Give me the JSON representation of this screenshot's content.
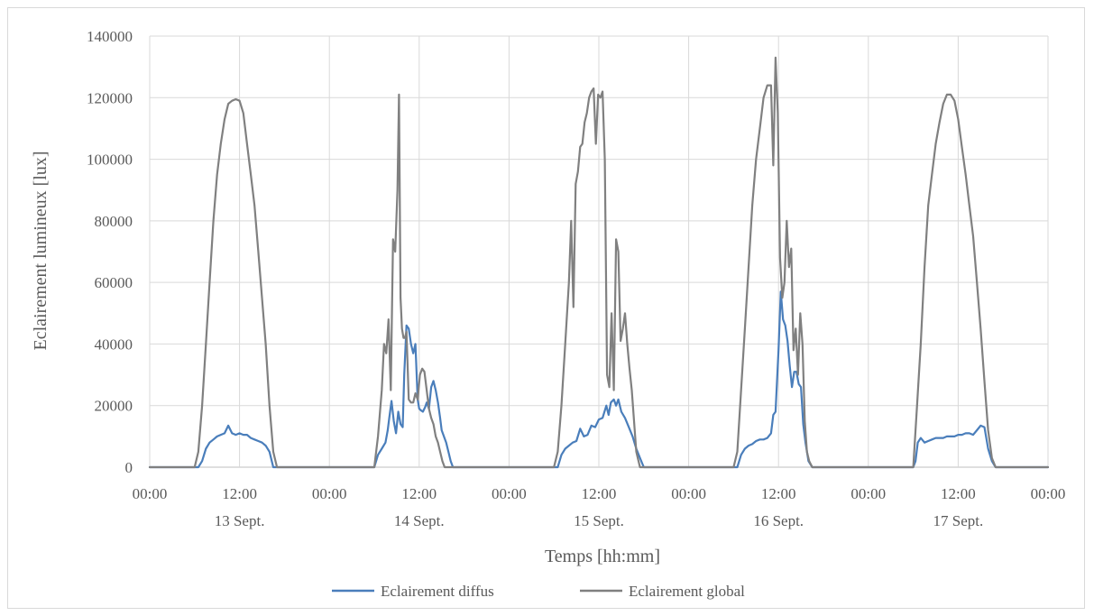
{
  "chart_data": {
    "type": "line",
    "title": "",
    "xlabel": "Temps [hh:mm]",
    "ylabel": "Eclairement lumineux [lux]",
    "ylim": [
      0,
      140000
    ],
    "yticks": [
      "0",
      "20000",
      "40000",
      "60000",
      "80000",
      "100000",
      "120000",
      "140000"
    ],
    "xlim_hours": [
      0,
      120
    ],
    "xticks": [
      "00:00",
      "12:00",
      "00:00",
      "12:00",
      "00:00",
      "12:00",
      "00:00",
      "12:00",
      "00:00",
      "12:00",
      "00:00"
    ],
    "day_labels": [
      "13 Sept.",
      "14 Sept.",
      "15 Sept.",
      "16 Sept.",
      "17 Sept."
    ],
    "grid": true,
    "legend_position": "bottom",
    "series": [
      {
        "name": "Eclairement diffus",
        "color": "#4a7ebb",
        "x": [
          0,
          6.5,
          7,
          7.5,
          8,
          8.5,
          9,
          9.5,
          10,
          10.5,
          11,
          11.5,
          12,
          12.5,
          13,
          13.5,
          14,
          14.5,
          15,
          15.5,
          16,
          16.5,
          17,
          17.5,
          24,
          30,
          30.5,
          31,
          31.5,
          31.8,
          32,
          32.3,
          32.6,
          32.9,
          33.2,
          33.5,
          33.8,
          34,
          34.3,
          34.6,
          34.9,
          35.2,
          35.5,
          35.8,
          36,
          36.2,
          36.5,
          36.8,
          37,
          37.3,
          37.6,
          37.9,
          38.2,
          38.5,
          38.8,
          39,
          39.3,
          39.6,
          39.9,
          40.2,
          40.5,
          40.8,
          41,
          41.3,
          41.6,
          42,
          48,
          54,
          54.5,
          55,
          55.5,
          56,
          56.5,
          57,
          57.5,
          58,
          58.5,
          59,
          59.5,
          60,
          60.5,
          61,
          61.3,
          61.6,
          62,
          62.3,
          62.6,
          63,
          63.5,
          64,
          64.5,
          65,
          65.5,
          66,
          72,
          78,
          78.5,
          79,
          79.5,
          80,
          80.5,
          81,
          81.5,
          82,
          82.5,
          83,
          83.3,
          83.6,
          84,
          84.3,
          84.6,
          84.9,
          85.2,
          85.5,
          85.8,
          86.1,
          86.4,
          86.7,
          87,
          87.3,
          87.6,
          88,
          88.5,
          89,
          89.5,
          96,
          102,
          102.3,
          102.6,
          103,
          103.5,
          104,
          104.5,
          105,
          105.5,
          106,
          106.5,
          107,
          107.5,
          108,
          108.5,
          109,
          109.5,
          110,
          110.5,
          111,
          111.5,
          112,
          112.5,
          113,
          113.5,
          120
        ],
        "y": [
          0,
          0,
          2000,
          6000,
          8000,
          9000,
          10000,
          10500,
          11000,
          13500,
          11000,
          10500,
          11000,
          10500,
          10500,
          9500,
          9000,
          8500,
          8000,
          7000,
          5000,
          0,
          0,
          0,
          0,
          0,
          4000,
          6000,
          8000,
          12000,
          16000,
          21500,
          15000,
          11000,
          18000,
          14000,
          13000,
          30000,
          46000,
          45000,
          40000,
          37000,
          40000,
          22000,
          19000,
          18500,
          18000,
          19500,
          21000,
          19000,
          26000,
          28000,
          25000,
          21000,
          16000,
          12000,
          10000,
          8000,
          5000,
          2000,
          0,
          0,
          0,
          0,
          0,
          0,
          0,
          0,
          0,
          4000,
          6000,
          7000,
          8000,
          8500,
          12500,
          10000,
          10500,
          13500,
          13000,
          15500,
          16000,
          20000,
          17000,
          21000,
          22000,
          20000,
          22000,
          18000,
          16000,
          13000,
          10000,
          6000,
          3000,
          0,
          0,
          0,
          0,
          4000,
          6000,
          7000,
          7500,
          8500,
          9000,
          9000,
          9500,
          11000,
          17000,
          18000,
          38000,
          57000,
          48000,
          46000,
          41000,
          33000,
          26000,
          31000,
          31000,
          27000,
          26000,
          14000,
          8000,
          2000,
          0,
          0,
          0,
          0,
          0,
          2000,
          8000,
          9500,
          8000,
          8500,
          9000,
          9500,
          9500,
          9500,
          10000,
          10000,
          10000,
          10500,
          10500,
          11000,
          11000,
          10500,
          12000,
          13500,
          13000,
          6000,
          2000,
          0,
          0,
          0
        ]
      },
      {
        "name": "Eclairement global",
        "color": "#808080",
        "x": [
          0,
          6,
          6.5,
          7,
          7.5,
          8,
          8.5,
          9,
          9.5,
          10,
          10.5,
          11,
          11.5,
          12,
          12.5,
          13,
          13.5,
          14,
          14.5,
          15,
          15.5,
          16,
          16.5,
          17,
          17.5,
          24,
          30,
          30.5,
          31,
          31.3,
          31.6,
          31.9,
          32.2,
          32.5,
          32.8,
          33.1,
          33.3,
          33.5,
          33.7,
          33.9,
          34.1,
          34.3,
          34.6,
          34.9,
          35.2,
          35.5,
          35.8,
          36.1,
          36.4,
          36.7,
          37,
          37.3,
          37.6,
          37.9,
          38.2,
          38.5,
          38.8,
          39.1,
          39.4,
          39.7,
          40,
          40.3,
          40.6,
          40.9,
          41.2,
          41.5,
          42,
          48,
          54,
          54.5,
          55,
          55.5,
          56,
          56.3,
          56.6,
          56.9,
          57.2,
          57.5,
          57.8,
          58.1,
          58.4,
          58.7,
          59,
          59.3,
          59.6,
          59.9,
          60.2,
          60.5,
          60.8,
          61.1,
          61.4,
          61.7,
          62,
          62.3,
          62.6,
          62.9,
          63.2,
          63.5,
          63.8,
          64.1,
          64.4,
          64.7,
          65,
          65.5,
          66,
          72,
          78,
          78.5,
          79,
          79.5,
          80,
          80.5,
          81,
          81.5,
          82,
          82.5,
          83,
          83.3,
          83.6,
          83.9,
          84.2,
          84.5,
          84.8,
          85.1,
          85.4,
          85.7,
          86,
          86.3,
          86.6,
          86.9,
          87.2,
          87.5,
          87.8,
          88.1,
          88.5,
          89,
          96,
          102,
          102.5,
          103,
          103.5,
          104,
          104.5,
          105,
          105.5,
          106,
          106.5,
          107,
          107.5,
          108,
          108.5,
          109,
          109.5,
          110,
          110.5,
          111,
          111.5,
          112,
          112.5,
          113,
          120
        ],
        "y": [
          0,
          0,
          5000,
          20000,
          40000,
          60000,
          80000,
          95000,
          105000,
          113000,
          118000,
          119000,
          119500,
          119000,
          115000,
          105000,
          95000,
          85000,
          70000,
          55000,
          40000,
          20000,
          5000,
          0,
          0,
          0,
          0,
          10000,
          25000,
          40000,
          37000,
          48000,
          25000,
          74000,
          70000,
          90000,
          121000,
          55000,
          45000,
          42000,
          42000,
          44000,
          22000,
          21000,
          21000,
          24000,
          22000,
          30000,
          32000,
          31000,
          25000,
          19000,
          16000,
          14000,
          10000,
          8000,
          5000,
          2000,
          0,
          0,
          0,
          0,
          0,
          0,
          0,
          0,
          0,
          0,
          0,
          5000,
          20000,
          40000,
          60000,
          80000,
          52000,
          92000,
          96000,
          104000,
          105000,
          112000,
          115000,
          120000,
          122000,
          123000,
          105000,
          121000,
          120000,
          122000,
          100000,
          30000,
          26000,
          50000,
          25000,
          74000,
          70000,
          41000,
          45000,
          50000,
          40000,
          32000,
          25000,
          15000,
          5000,
          0,
          0,
          0,
          0,
          5000,
          25000,
          45000,
          65000,
          85000,
          100000,
          110000,
          120000,
          124000,
          124000,
          98000,
          133000,
          115000,
          68000,
          55000,
          60000,
          80000,
          65000,
          71000,
          38000,
          45000,
          30000,
          50000,
          40000,
          15000,
          5000,
          2000,
          0,
          0,
          0,
          0,
          20000,
          40000,
          65000,
          85000,
          95000,
          105000,
          112000,
          118000,
          121000,
          121000,
          119000,
          113000,
          104000,
          95000,
          85000,
          75000,
          60000,
          45000,
          28000,
          12000,
          3000,
          0,
          0
        ]
      }
    ]
  }
}
